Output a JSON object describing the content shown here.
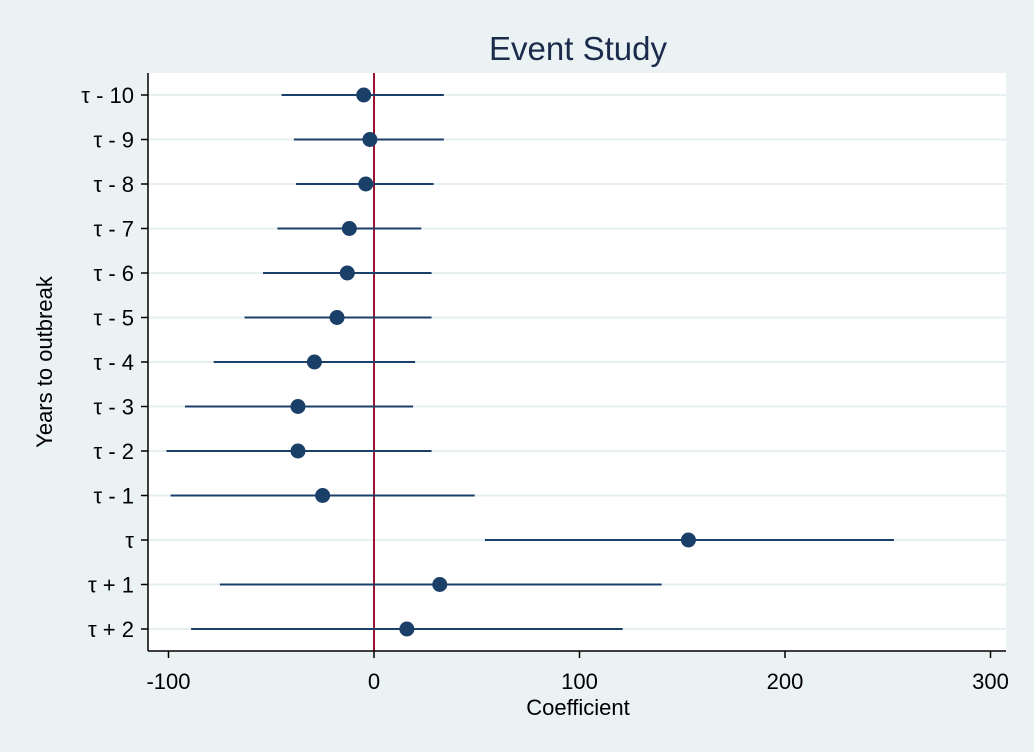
{
  "chart_data": {
    "type": "scatter",
    "title": "Event Study",
    "xlabel": "Coefficient",
    "ylabel": "Years to outbreak",
    "xlim": [
      -100,
      300
    ],
    "xticks": [
      -100,
      0,
      100,
      200,
      300
    ],
    "reference_line_x": 0,
    "grid": true,
    "colors": {
      "marker": "#1a3f68",
      "reference": "#9b1330",
      "grid": "#e6f0f0",
      "plot_bg": "#ffffff",
      "page_bg": "#eaf2f3"
    },
    "points": [
      {
        "label": "τ - 10",
        "coef": -5,
        "ci_low": -45,
        "ci_high": 34
      },
      {
        "label": "τ - 9",
        "coef": -2,
        "ci_low": -39,
        "ci_high": 34
      },
      {
        "label": "τ - 8",
        "coef": -4,
        "ci_low": -38,
        "ci_high": 29
      },
      {
        "label": "τ - 7",
        "coef": -12,
        "ci_low": -47,
        "ci_high": 23
      },
      {
        "label": "τ - 6",
        "coef": -13,
        "ci_low": -54,
        "ci_high": 28
      },
      {
        "label": "τ - 5",
        "coef": -18,
        "ci_low": -63,
        "ci_high": 28
      },
      {
        "label": "τ - 4",
        "coef": -29,
        "ci_low": -78,
        "ci_high": 20
      },
      {
        "label": "τ - 3",
        "coef": -37,
        "ci_low": -92,
        "ci_high": 19
      },
      {
        "label": "τ - 2",
        "coef": -37,
        "ci_low": -101,
        "ci_high": 28
      },
      {
        "label": "τ - 1",
        "coef": -25,
        "ci_low": -99,
        "ci_high": 49
      },
      {
        "label": "τ",
        "coef": 153,
        "ci_low": 54,
        "ci_high": 253
      },
      {
        "label": "τ + 1",
        "coef": 32,
        "ci_low": -75,
        "ci_high": 140
      },
      {
        "label": "τ + 2",
        "coef": 16,
        "ci_low": -89,
        "ci_high": 121
      }
    ]
  }
}
